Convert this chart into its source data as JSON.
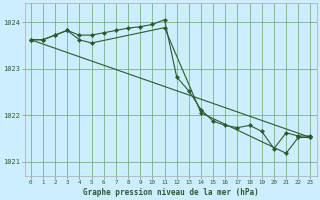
{
  "title": "Graphe pression niveau de la mer (hPa)",
  "bg_color": "#cceeff",
  "plot_bg_color": "#cceeff",
  "grid_color": "#66aa66",
  "line_color": "#2d5a2d",
  "marker_color": "#2d5a2d",
  "ylim": [
    1020.7,
    1024.4
  ],
  "yticks": [
    1021,
    1022,
    1023,
    1024
  ],
  "xlim": [
    -0.5,
    23.5
  ],
  "xticks": [
    0,
    1,
    2,
    3,
    4,
    5,
    6,
    7,
    8,
    9,
    10,
    11,
    12,
    13,
    14,
    15,
    16,
    17,
    18,
    19,
    20,
    21,
    22,
    23
  ],
  "series1_x": [
    0,
    1,
    2,
    3,
    4,
    5,
    6,
    7,
    8,
    9,
    10,
    11,
    12,
    13,
    14,
    15,
    16,
    17,
    18,
    19,
    20,
    21,
    22,
    23
  ],
  "series1_y": [
    1023.62,
    1023.62,
    1023.72,
    1023.82,
    1023.72,
    1023.72,
    1023.77,
    1023.82,
    1023.87,
    1023.9,
    1023.95,
    1024.05,
    1022.82,
    1022.52,
    1022.12,
    1021.87,
    1021.78,
    1021.73,
    1021.78,
    1021.65,
    1021.28,
    1021.62,
    1021.55,
    1021.55
  ],
  "series2_x": [
    0,
    1,
    2,
    3,
    4,
    5,
    11,
    14,
    21,
    22,
    23
  ],
  "series2_y": [
    1023.62,
    1023.62,
    1023.72,
    1023.82,
    1023.62,
    1023.55,
    1023.88,
    1022.05,
    1021.18,
    1021.52,
    1021.52
  ],
  "series3_x": [
    0,
    23
  ],
  "series3_y": [
    1023.62,
    1021.52
  ]
}
